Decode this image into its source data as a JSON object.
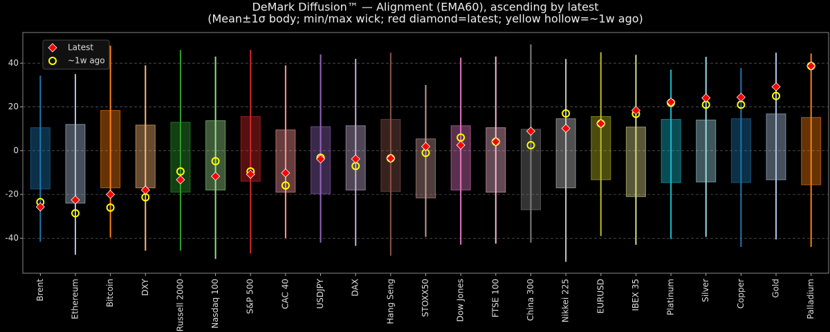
{
  "chart_data": {
    "type": "range",
    "title": "DeMark Diffusion™ — Alignment (EMA60), ascending by latest",
    "subtitle": "(Mean±1σ body; min/max wick; red diamond=latest; yellow hollow=~1w ago)",
    "categories": [
      "Brent",
      "Ethereum",
      "Bitcoin",
      "DXY",
      "Russell 2000",
      "Nasdaq 100",
      "S&P 500",
      "CAC 40",
      "USDJPY",
      "DAX",
      "Hang Seng",
      "STOXX50",
      "Dow Jones",
      "FTSE 100",
      "China 300",
      "Nikkei 225",
      "EURUSD",
      "IBEX 35",
      "Platinum",
      "Silver",
      "Copper",
      "Gold",
      "Palladium"
    ],
    "colors": [
      "#1f77b4",
      "#b0c4de",
      "#ff7f0e",
      "#ffbb78",
      "#2ca02c",
      "#98df8a",
      "#d62728",
      "#ff9896",
      "#9467bd",
      "#c5b0d5",
      "#8c564b",
      "#c49c94",
      "#e377c2",
      "#f7b6d2",
      "#7f7f7f",
      "#c7c7c7",
      "#bcbd22",
      "#dbdb8d",
      "#17becf",
      "#9edae5",
      "#1f77b4",
      "#aec7e8",
      "#ff7f0e"
    ],
    "wick_min": [
      -41.6,
      -47.6,
      -39.7,
      -45.7,
      -45.7,
      -49.5,
      -47,
      -40,
      -42,
      -43.5,
      -48,
      -39.4,
      -43,
      -42.5,
      -42,
      -50.8,
      -39,
      -43,
      -40.3,
      -39.4,
      -44,
      -40.6,
      -44
    ],
    "wick_max": [
      34.3,
      35,
      48,
      39,
      46,
      43,
      46,
      39,
      44,
      42,
      44.8,
      30,
      42.5,
      43,
      48.6,
      41.9,
      45,
      43.8,
      37,
      42.9,
      37.8,
      44.8,
      44.4
    ],
    "box_low": [
      -17.5,
      -24,
      -17,
      -17,
      -19,
      -18,
      -14,
      -19,
      -19.7,
      -18,
      -18.7,
      -21.6,
      -18,
      -19,
      -27,
      -17,
      -13.3,
      -21,
      -14.6,
      -14.3,
      -14.6,
      -13.3,
      -15.6
    ],
    "box_high": [
      10.5,
      12,
      18.4,
      11.7,
      13,
      13.7,
      15.6,
      9.5,
      11,
      11.4,
      14.3,
      5.4,
      11.4,
      10.5,
      9.8,
      14.6,
      15.6,
      10.8,
      14.3,
      14,
      14.6,
      16.8,
      15.2
    ],
    "series": [
      {
        "name": "Latest",
        "color": "#ff0000",
        "values": [
          -25.7,
          -22.5,
          -20,
          -18,
          -13.3,
          -11.7,
          -10.8,
          -10.2,
          -3.8,
          -3.8,
          -3.5,
          1.9,
          2.5,
          4.1,
          8.9,
          10.2,
          12.4,
          18.4,
          22.2,
          24.1,
          24.4,
          29.2,
          38.7
        ]
      },
      {
        "name": "~1w ago",
        "color": "#ffff00",
        "values": [
          -23.5,
          -28.6,
          -26,
          -21.3,
          -9.5,
          -4.8,
          -9.5,
          -15.9,
          -3.2,
          -7,
          -3.5,
          -1,
          6,
          4.1,
          2.5,
          17,
          12.4,
          16.8,
          21.9,
          21,
          21,
          25,
          38.7
        ]
      }
    ],
    "ylim": [
      -56,
      54
    ],
    "yticks": [
      -40,
      -20,
      0,
      20,
      40
    ],
    "grid": true,
    "legend": "upper left"
  }
}
